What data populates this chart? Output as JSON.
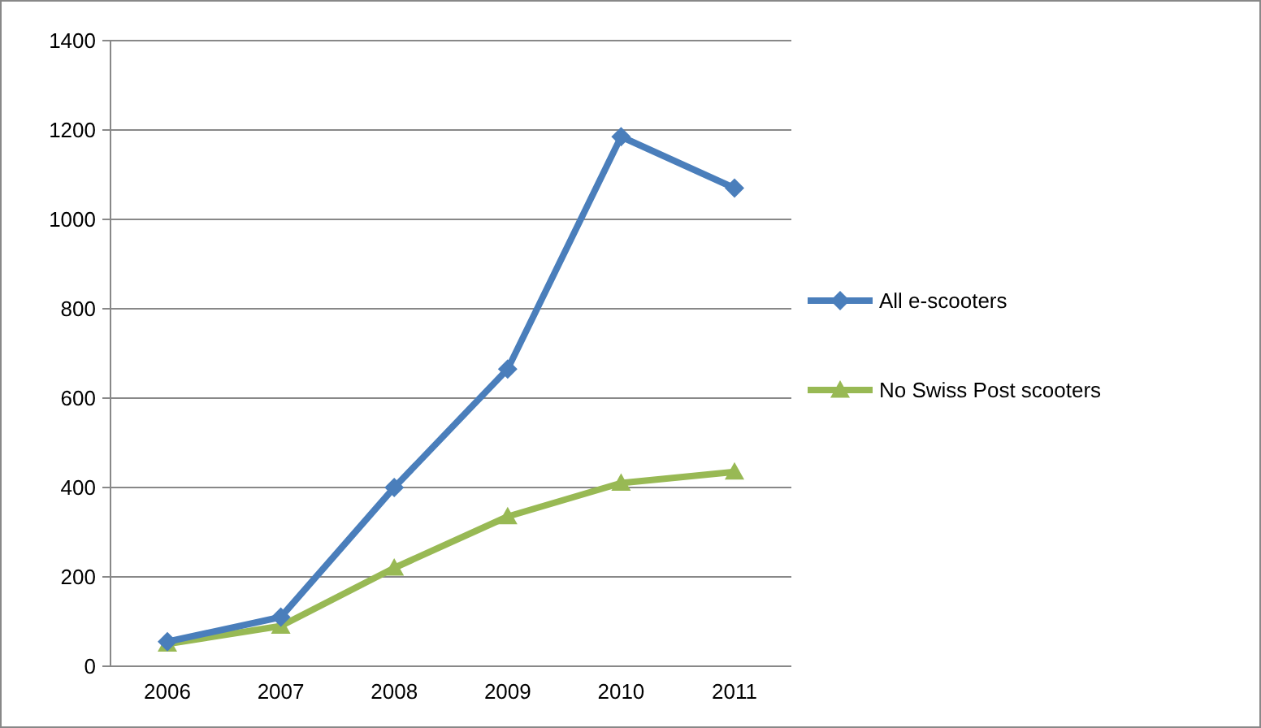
{
  "chart_data": {
    "type": "line",
    "categories": [
      "2006",
      "2007",
      "2008",
      "2009",
      "2010",
      "2011"
    ],
    "series": [
      {
        "name": "All e-scooters",
        "color": "#4a7ebb",
        "marker": "diamond",
        "values": [
          55,
          110,
          400,
          665,
          1185,
          1070
        ]
      },
      {
        "name": "No Swiss Post scooters",
        "color": "#98b954",
        "marker": "triangle",
        "values": [
          50,
          90,
          220,
          335,
          410,
          435
        ]
      }
    ],
    "ylim": [
      0,
      1400
    ],
    "yticks": [
      0,
      200,
      400,
      600,
      800,
      1000,
      1200,
      1400
    ],
    "grid": "y",
    "legend": "right",
    "line_style": "solid"
  }
}
